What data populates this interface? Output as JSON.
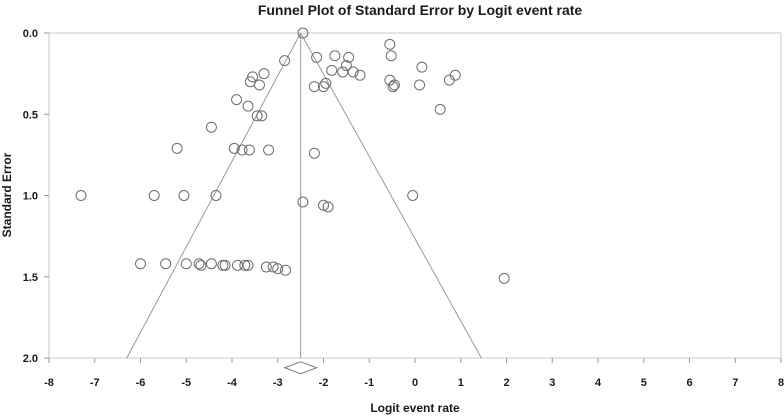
{
  "chart_data": {
    "type": "scatter",
    "title": "Funnel Plot of Standard Error by Logit event rate",
    "xlabel": "Logit event rate",
    "ylabel": "Standard Error",
    "xlim": [
      -8,
      8
    ],
    "ylim": [
      0,
      2
    ],
    "y_inverted": true,
    "x_ticks": [
      -8,
      -7,
      -6,
      -5,
      -4,
      -3,
      -2,
      -1,
      0,
      1,
      2,
      3,
      4,
      5,
      6,
      7,
      8
    ],
    "y_ticks": [
      0,
      0.5,
      1,
      1.5,
      2
    ],
    "y_tick_labels": [
      "0.0",
      "0.5",
      "1.0",
      "1.5",
      "2.0"
    ],
    "grid": false,
    "legend": "none",
    "funnel": {
      "center": -2.5,
      "upper_bound": -2.5,
      "left_bottom": [
        -6.3,
        2.0
      ],
      "right_bottom": [
        1.45,
        2.0
      ]
    },
    "summary_diamond": {
      "center": -2.5,
      "half_width": 0.35,
      "y": 2.06
    },
    "x": [
      -2.45,
      -0.55,
      -0.52,
      -1.75,
      -2.15,
      -1.45,
      -1.5,
      -1.58,
      -1.35,
      -1.2,
      -1.82,
      -0.45,
      0.15,
      -3.55,
      -3.3,
      -3.6,
      -3.4,
      -2.85,
      -0.55,
      0.1,
      -0.48,
      -1.95,
      -2.2,
      -2.0,
      0.88,
      0.75,
      -3.9,
      -3.65,
      -3.45,
      -3.35,
      0.55,
      -4.45,
      -5.2,
      -3.95,
      -3.78,
      -3.62,
      -3.2,
      -2.2,
      -7.3,
      -5.7,
      -5.05,
      -4.35,
      -2.45,
      -2.0,
      -1.9,
      -0.05,
      -6.0,
      -5.45,
      -5.0,
      -4.72,
      -4.68,
      -4.45,
      -4.2,
      -4.15,
      -3.88,
      -3.72,
      -3.65,
      -3.25,
      -3.1,
      -3.0,
      -2.83,
      1.95
    ],
    "y": [
      0.0,
      0.07,
      0.14,
      0.14,
      0.15,
      0.15,
      0.2,
      0.24,
      0.24,
      0.26,
      0.23,
      0.32,
      0.21,
      0.27,
      0.25,
      0.3,
      0.32,
      0.17,
      0.29,
      0.32,
      0.33,
      0.31,
      0.33,
      0.33,
      0.26,
      0.29,
      0.41,
      0.45,
      0.51,
      0.51,
      0.47,
      0.58,
      0.71,
      0.71,
      0.72,
      0.72,
      0.72,
      0.74,
      1.0,
      1.0,
      1.0,
      1.0,
      1.04,
      1.06,
      1.07,
      1.0,
      1.42,
      1.42,
      1.42,
      1.42,
      1.43,
      1.42,
      1.43,
      1.43,
      1.43,
      1.43,
      1.43,
      1.44,
      1.44,
      1.45,
      1.46,
      1.51
    ]
  }
}
